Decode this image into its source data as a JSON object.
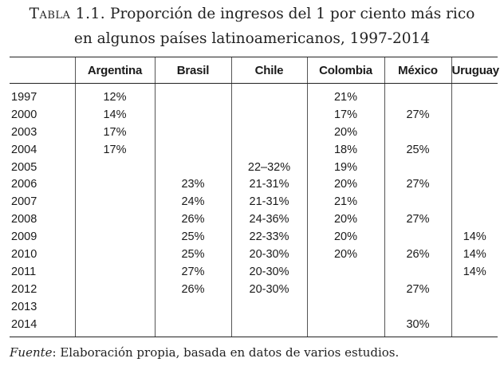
{
  "caption": {
    "label": "Tabla 1.1.",
    "line1": "Proporción de ingresos del 1 por ciento más rico",
    "line2": "en algunos países latinoamericanos, 1997-2014"
  },
  "table": {
    "headers": [
      "",
      "Argentina",
      "Brasil",
      "Chile",
      "Colombia",
      "México",
      "Uruguay"
    ],
    "rows": [
      [
        "1997",
        "12%",
        "",
        "",
        "21%",
        "",
        ""
      ],
      [
        "2000",
        "14%",
        "",
        "",
        "17%",
        "27%",
        ""
      ],
      [
        "2003",
        "17%",
        "",
        "",
        "20%",
        "",
        ""
      ],
      [
        "2004",
        "17%",
        "",
        "",
        "18%",
        "25%",
        ""
      ],
      [
        "2005",
        "",
        "",
        "22–32%",
        "19%",
        "",
        ""
      ],
      [
        "2006",
        "",
        "23%",
        "21-31%",
        "20%",
        "27%",
        ""
      ],
      [
        "2007",
        "",
        "24%",
        "21-31%",
        "21%",
        "",
        ""
      ],
      [
        "2008",
        "",
        "26%",
        "24-36%",
        "20%",
        "27%",
        ""
      ],
      [
        "2009",
        "",
        "25%",
        "22-33%",
        "20%",
        "",
        "14%"
      ],
      [
        "2010",
        "",
        "25%",
        "20-30%",
        "20%",
        "26%",
        "14%"
      ],
      [
        "2011",
        "",
        "27%",
        "20-30%",
        "",
        "",
        "14%"
      ],
      [
        "2012",
        "",
        "26%",
        "20-30%",
        "",
        "27%",
        ""
      ],
      [
        "2013",
        "",
        "",
        "",
        "",
        "",
        ""
      ],
      [
        "2014",
        "",
        "",
        "",
        "",
        "30%",
        ""
      ]
    ]
  },
  "source": {
    "label": "Fuente",
    "text": ": Elaboración propia, basada en datos de varios estudios."
  }
}
